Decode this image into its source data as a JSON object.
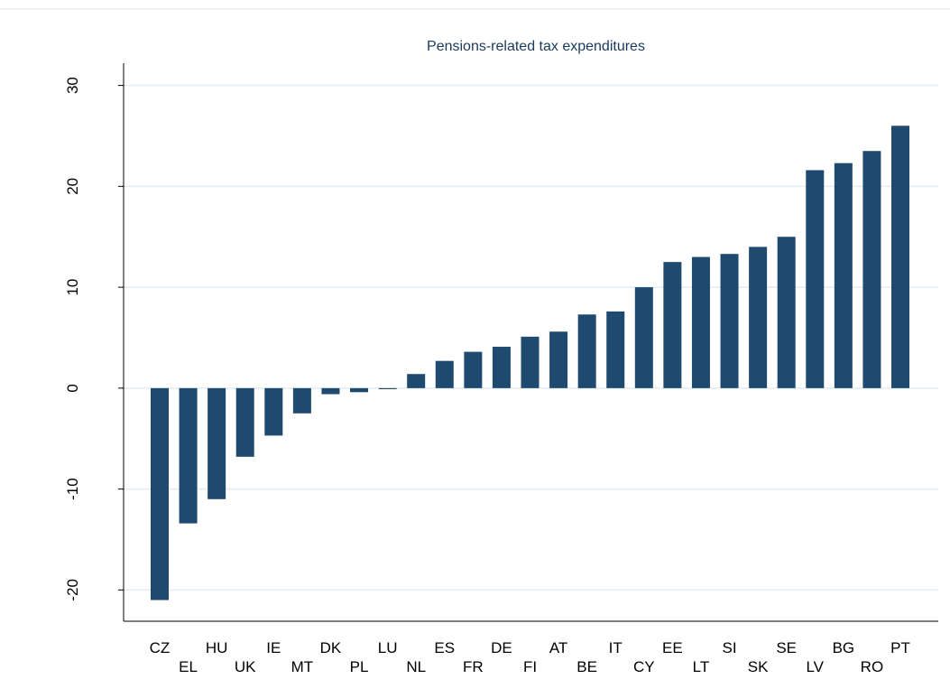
{
  "chart_data": {
    "type": "bar",
    "title": "Pensions-related tax expenditures",
    "categories": [
      "CZ",
      "EL",
      "HU",
      "UK",
      "IE",
      "MT",
      "DK",
      "PL",
      "LU",
      "NL",
      "ES",
      "FR",
      "DE",
      "FI",
      "AT",
      "BE",
      "IT",
      "CY",
      "EE",
      "LT",
      "SI",
      "SK",
      "SE",
      "LV",
      "BG",
      "RO",
      "PT"
    ],
    "values": [
      -21.0,
      -13.4,
      -11.0,
      -6.8,
      -4.7,
      -2.5,
      -0.6,
      -0.4,
      -0.1,
      1.4,
      2.7,
      3.6,
      4.1,
      5.1,
      5.6,
      7.3,
      7.6,
      10.0,
      12.5,
      13.0,
      13.3,
      14.0,
      15.0,
      21.6,
      22.3,
      23.5,
      26.0
    ],
    "color": "#1f4a70",
    "ylim": [
      -23.1,
      32.2
    ],
    "yticks": [
      -20,
      -10,
      0,
      10,
      20,
      30
    ],
    "grid": true
  }
}
